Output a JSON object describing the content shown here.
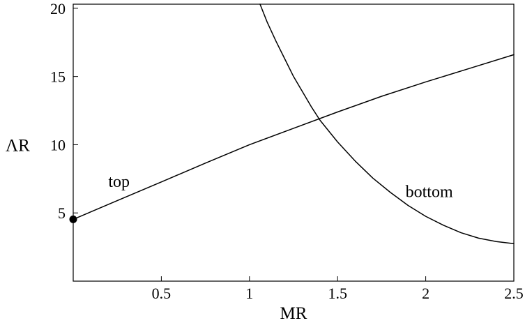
{
  "chart_data": {
    "type": "line",
    "title": "",
    "xlabel": "MR",
    "ylabel": "ΛR",
    "xlim": [
      0,
      2.5
    ],
    "ylim": [
      0,
      20.3
    ],
    "grid": false,
    "x_ticks": [
      {
        "value": 0.5,
        "label": "0.5"
      },
      {
        "value": 1,
        "label": "1"
      },
      {
        "value": 1.5,
        "label": "1.5"
      },
      {
        "value": 2,
        "label": "2"
      },
      {
        "value": 2.5,
        "label": "2.5"
      }
    ],
    "y_ticks": [
      {
        "value": 5,
        "label": "5"
      },
      {
        "value": 10,
        "label": "10"
      },
      {
        "value": 15,
        "label": "15"
      },
      {
        "value": 20,
        "label": "20"
      }
    ],
    "series": [
      {
        "name": "top",
        "color": "#000000",
        "points": [
          {
            "x": 0.0,
            "y": 4.53
          },
          {
            "x": 0.25,
            "y": 5.9
          },
          {
            "x": 0.5,
            "y": 7.27
          },
          {
            "x": 0.75,
            "y": 8.65
          },
          {
            "x": 1.0,
            "y": 10.0
          },
          {
            "x": 1.25,
            "y": 11.2
          },
          {
            "x": 1.5,
            "y": 12.4
          },
          {
            "x": 1.75,
            "y": 13.55
          },
          {
            "x": 2.0,
            "y": 14.6
          },
          {
            "x": 2.25,
            "y": 15.6
          },
          {
            "x": 2.5,
            "y": 16.6
          }
        ]
      },
      {
        "name": "bottom",
        "color": "#000000",
        "points": [
          {
            "x": 1.06,
            "y": 20.3
          },
          {
            "x": 1.1,
            "y": 19.0
          },
          {
            "x": 1.15,
            "y": 17.6
          },
          {
            "x": 1.2,
            "y": 16.3
          },
          {
            "x": 1.25,
            "y": 15.0
          },
          {
            "x": 1.3,
            "y": 13.9
          },
          {
            "x": 1.35,
            "y": 12.8
          },
          {
            "x": 1.4,
            "y": 11.8
          },
          {
            "x": 1.5,
            "y": 10.2
          },
          {
            "x": 1.6,
            "y": 8.8
          },
          {
            "x": 1.7,
            "y": 7.55
          },
          {
            "x": 1.8,
            "y": 6.5
          },
          {
            "x": 1.9,
            "y": 5.55
          },
          {
            "x": 2.0,
            "y": 4.75
          },
          {
            "x": 2.1,
            "y": 4.1
          },
          {
            "x": 2.2,
            "y": 3.55
          },
          {
            "x": 2.3,
            "y": 3.15
          },
          {
            "x": 2.4,
            "y": 2.9
          },
          {
            "x": 2.5,
            "y": 2.75
          }
        ]
      }
    ],
    "markers": [
      {
        "x": 0.0,
        "y": 4.53
      }
    ],
    "annotations": [
      {
        "text": "top",
        "x": 0.26,
        "y": 6.9
      },
      {
        "text": "bottom",
        "x": 2.02,
        "y": 6.15
      }
    ]
  }
}
